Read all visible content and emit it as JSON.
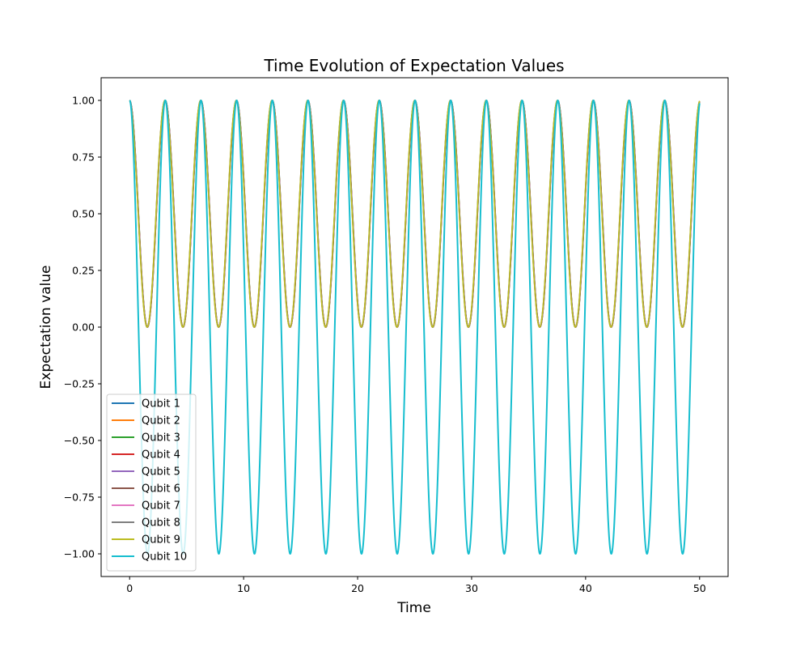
{
  "chart_data": {
    "type": "line",
    "title": "Time Evolution of Expectation Values",
    "xlabel": "Time",
    "ylabel": "Expectation value",
    "xlim": [
      -2.5,
      52.5
    ],
    "ylim": [
      -1.1,
      1.1
    ],
    "xticks": [
      0,
      10,
      20,
      30,
      40,
      50
    ],
    "xtick_labels": [
      "0",
      "10",
      "20",
      "30",
      "40",
      "50"
    ],
    "yticks": [
      -1.0,
      -0.75,
      -0.5,
      -0.25,
      0.0,
      0.25,
      0.5,
      0.75,
      1.0
    ],
    "ytick_labels": [
      "−1.00",
      "−0.75",
      "−0.50",
      "−0.25",
      "0.00",
      "0.25",
      "0.50",
      "0.75",
      "1.00"
    ],
    "grid": false,
    "legend_position": "lower-left",
    "series": [
      {
        "name": "Qubit 1",
        "color": "#1f77b4",
        "family": "fast",
        "visible_curve": "overlaps Qubit 9"
      },
      {
        "name": "Qubit 2",
        "color": "#ff7f0e",
        "family": "fast",
        "visible_curve": "overlaps Qubit 9"
      },
      {
        "name": "Qubit 3",
        "color": "#2ca02c",
        "family": "fast",
        "visible_curve": "overlaps Qubit 9"
      },
      {
        "name": "Qubit 4",
        "color": "#d62728",
        "family": "fast",
        "visible_curve": "overlaps Qubit 9"
      },
      {
        "name": "Qubit 5",
        "color": "#9467bd",
        "family": "fast",
        "visible_curve": "overlaps Qubit 9"
      },
      {
        "name": "Qubit 6",
        "color": "#8c564b",
        "family": "fast",
        "visible_curve": "overlaps Qubit 9"
      },
      {
        "name": "Qubit 7",
        "color": "#e377c2",
        "family": "fast",
        "visible_curve": "overlaps Qubit 9"
      },
      {
        "name": "Qubit 8",
        "color": "#7f7f7f",
        "family": "fast",
        "visible_curve": "overlaps Qubit 9"
      },
      {
        "name": "Qubit 9",
        "color": "#bcbd22",
        "family": "fast"
      },
      {
        "name": "Qubit 10",
        "color": "#17becf",
        "family": "slow"
      }
    ],
    "curves": {
      "fast": {
        "description": "cos^2 oscillation between 0 and 1",
        "t_start": 0,
        "t_end": 50,
        "period": 3.13,
        "min": 0.0,
        "max": 1.0
      },
      "slow": {
        "description": "cos oscillation between -1 and 1",
        "t_start": 0,
        "t_end": 50,
        "period": 3.13,
        "min": -1.0,
        "max": 1.0,
        "end_value": 0.86
      }
    }
  }
}
